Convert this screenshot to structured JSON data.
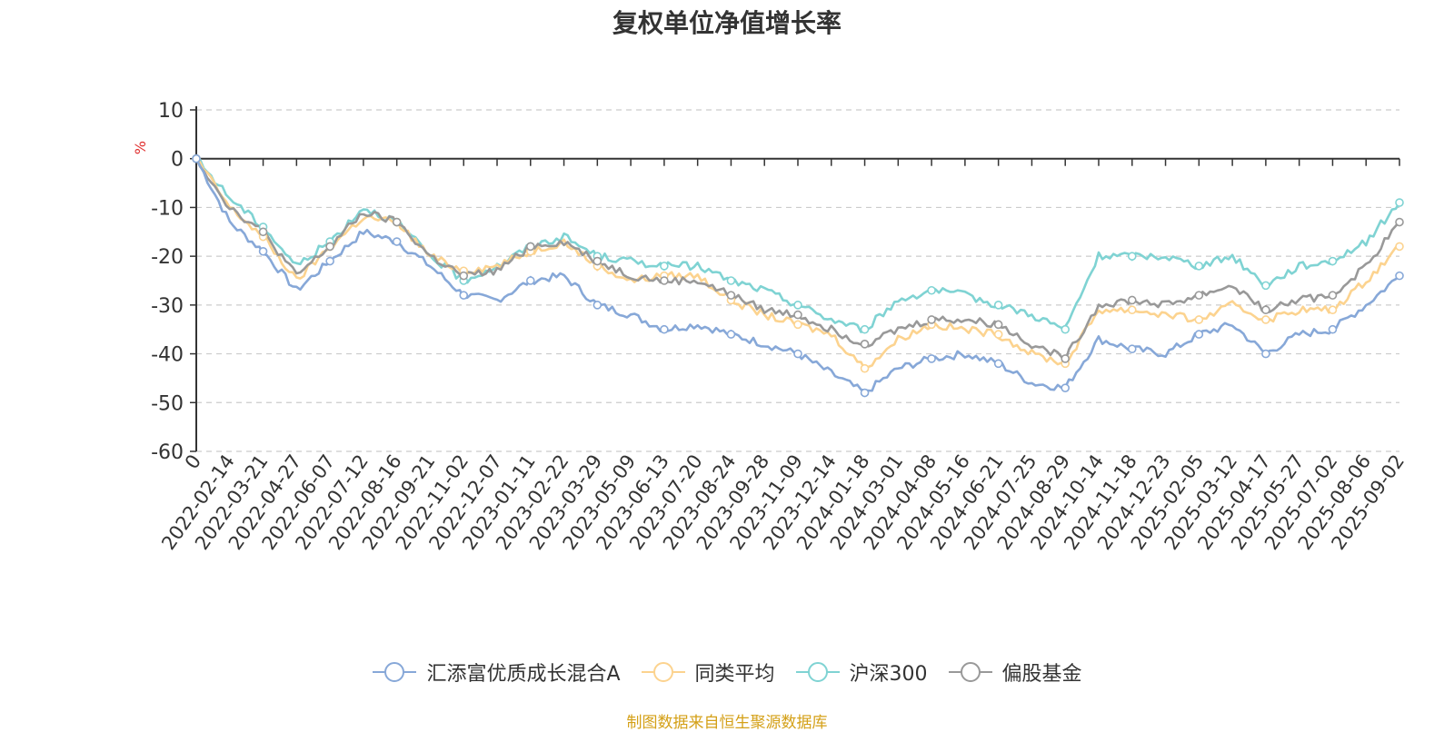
{
  "title": "复权单位净值增长率",
  "footer": "制图数据来自恒生聚源数据库",
  "colors": {
    "fund": "#87a8d8",
    "peer_avg": "#fcd38f",
    "csi300": "#7fd3d3",
    "equity_fund": "#999999",
    "unit_label": "#e03030",
    "footer": "#d4a017"
  },
  "legend": [
    {
      "name": "汇添富优质成长混合A",
      "color": "#87a8d8",
      "icon": "circle-line-marker"
    },
    {
      "name": "同类平均",
      "color": "#fcd38f",
      "icon": "circle-line-marker"
    },
    {
      "name": "沪深300",
      "color": "#7fd3d3",
      "icon": "circle-line-marker"
    },
    {
      "name": "偏股基金",
      "color": "#999999",
      "icon": "circle-line-marker"
    }
  ],
  "chart_data": {
    "type": "line",
    "title": "复权单位净值增长率",
    "ylabel": "%",
    "ylim": [
      -60,
      10
    ],
    "yticks": [
      10,
      0,
      -10,
      -20,
      -30,
      -40,
      -50,
      -60
    ],
    "grid": true,
    "legend_position": "bottom",
    "x_ticks": [
      "0",
      "2022-02-14",
      "2022-03-21",
      "2022-04-27",
      "2022-06-07",
      "2022-07-12",
      "2022-08-16",
      "2022-09-21",
      "2022-11-02",
      "2022-12-07",
      "2023-01-11",
      "2023-02-22",
      "2023-03-29",
      "2023-05-09",
      "2023-06-13",
      "2023-07-20",
      "2023-08-24",
      "2023-09-28",
      "2023-11-09",
      "2023-12-14",
      "2024-01-18",
      "2024-03-01",
      "2024-04-08",
      "2024-05-16",
      "2024-06-21",
      "2024-07-25",
      "2024-08-29",
      "2024-10-14",
      "2024-11-18",
      "2024-12-23",
      "2025-02-05",
      "2025-03-12",
      "2025-04-17",
      "2025-05-27",
      "2025-07-02",
      "2025-08-06",
      "2025-09-02"
    ],
    "series": [
      {
        "name": "汇添富优质成长混合A",
        "values": [
          0,
          -13,
          -19,
          -27,
          -21,
          -15,
          -17,
          -22,
          -28,
          -29,
          -25,
          -24,
          -30,
          -32,
          -35,
          -34,
          -36,
          -38,
          -40,
          -44,
          -48,
          -43,
          -41,
          -40,
          -42,
          -46,
          -47,
          -37,
          -39,
          -40,
          -36,
          -34,
          -40,
          -36,
          -35,
          -30,
          -24
        ]
      },
      {
        "name": "同类平均",
        "values": [
          0,
          -10,
          -16,
          -25,
          -18,
          -12,
          -13,
          -20,
          -23,
          -22,
          -19,
          -17,
          -22,
          -25,
          -24,
          -24,
          -29,
          -32,
          -34,
          -36,
          -43,
          -37,
          -34,
          -35,
          -36,
          -40,
          -42,
          -31,
          -31,
          -32,
          -33,
          -30,
          -33,
          -31,
          -31,
          -25,
          -18
        ]
      },
      {
        "name": "沪深300",
        "values": [
          0,
          -8,
          -14,
          -22,
          -17,
          -10,
          -13,
          -20,
          -25,
          -22,
          -18,
          -16,
          -20,
          -21,
          -22,
          -22,
          -25,
          -27,
          -30,
          -33,
          -35,
          -29,
          -27,
          -28,
          -30,
          -32,
          -35,
          -20,
          -20,
          -20,
          -22,
          -20,
          -26,
          -22,
          -21,
          -17,
          -9
        ]
      },
      {
        "name": "偏股基金",
        "values": [
          0,
          -10,
          -15,
          -24,
          -18,
          -11,
          -13,
          -20,
          -24,
          -23,
          -18,
          -17,
          -21,
          -24,
          -25,
          -25,
          -28,
          -31,
          -32,
          -35,
          -38,
          -35,
          -33,
          -33,
          -34,
          -38,
          -41,
          -30,
          -29,
          -30,
          -28,
          -26,
          -31,
          -29,
          -28,
          -22,
          -13
        ]
      }
    ]
  }
}
